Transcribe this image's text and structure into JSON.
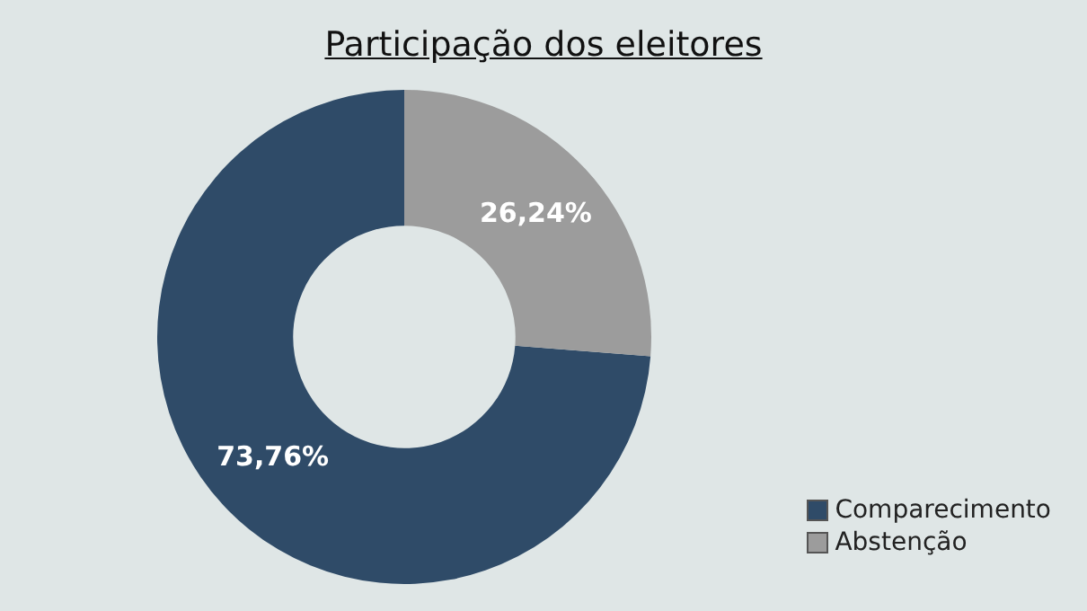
{
  "chart_data": {
    "type": "donut",
    "title": "Participação dos eleitores",
    "categories": [
      "Comparecimento",
      "Abstenção"
    ],
    "values": [
      73.76,
      26.24
    ],
    "colors": [
      "#2f4b68",
      "#9c9c9c"
    ],
    "value_labels": [
      "73,76%",
      "26,24%"
    ],
    "legend": "bottom right"
  }
}
